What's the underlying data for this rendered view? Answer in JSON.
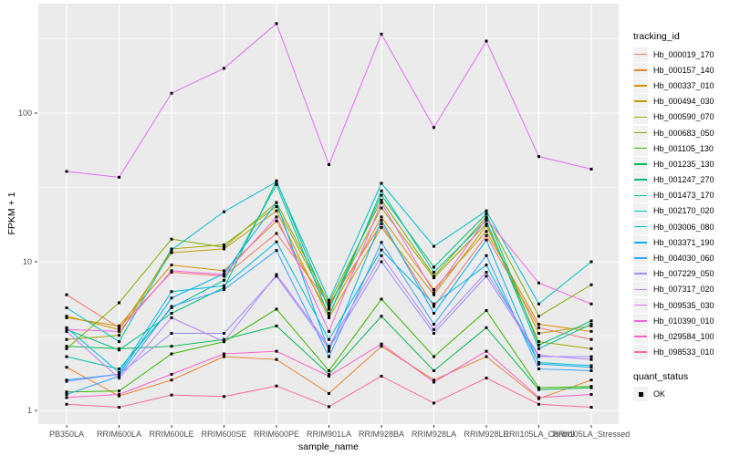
{
  "axes": {
    "x_title": "sample_name",
    "y_title": "FPKM + 1",
    "y_tick_labels": [
      "100",
      "10",
      "1"
    ]
  },
  "legend": {
    "tracking_title": "tracking_id",
    "quant_title": "quant_status",
    "quant_items": [
      "OK"
    ]
  },
  "chart_data": {
    "type": "line",
    "title": "",
    "xlabel": "sample_name",
    "ylabel": "FPKM + 1",
    "y_scale": "log10",
    "ylim": [
      0.81,
      545
    ],
    "y_ticks": [
      1,
      10,
      100
    ],
    "y_minor": [
      3.1623,
      31.623,
      316.23
    ],
    "grid": "on",
    "legend_position": "right",
    "point_marker": "black-square",
    "colors": {
      "panel_bg": "#EBEBEB",
      "grid": "#FFFFFF",
      "tick": "#333333",
      "tick_label": "#4D4D4D",
      "point": "#000000",
      "legend_key_bg": "#F2F2F2"
    },
    "categories": [
      "PB350LA",
      "RRIM600LA",
      "RRIM600LE",
      "RRIM600SE",
      "RRIM600PE",
      "RRIM901LA",
      "RRIM928BA",
      "RRIM928LA",
      "RRIM928LE",
      "RRII105LA_Control",
      "RRII105LA_Stressed"
    ],
    "series": [
      {
        "name": "Hb_000019_170",
        "color": "#F8766D",
        "values": [
          6.0,
          3.6,
          8.5,
          8.0,
          15.5,
          5.2,
          18,
          5.0,
          15,
          3.6,
          3.0
        ]
      },
      {
        "name": "Hb_000157_140",
        "color": "#EA8331",
        "values": [
          1.95,
          1.25,
          1.6,
          2.3,
          2.2,
          1.3,
          2.7,
          1.6,
          2.3,
          1.2,
          1.6
        ]
      },
      {
        "name": "Hb_000337_010",
        "color": "#D89000",
        "values": [
          4.2,
          3.7,
          9.5,
          8.7,
          18.8,
          4.5,
          20,
          6.5,
          16,
          3.8,
          3.4
        ]
      },
      {
        "name": "Hb_000494_030",
        "color": "#C09B00",
        "values": [
          4.3,
          3.5,
          11.5,
          12.2,
          22,
          4.2,
          17,
          6.0,
          17.5,
          3.3,
          3.7
        ]
      },
      {
        "name": "Hb_000590_070",
        "color": "#A3A500",
        "values": [
          3.0,
          3.2,
          12.2,
          13,
          23.5,
          5.0,
          23,
          7.8,
          18,
          2.9,
          2.6
        ]
      },
      {
        "name": "Hb_000683_050",
        "color": "#7CAE00",
        "values": [
          2.6,
          5.3,
          14.2,
          12.5,
          25,
          5.3,
          26,
          8.0,
          20,
          4.3,
          7.0
        ]
      },
      {
        "name": "Hb_001105_130",
        "color": "#39B600",
        "values": [
          1.33,
          1.35,
          2.4,
          2.9,
          4.8,
          1.85,
          5.6,
          2.3,
          4.7,
          1.42,
          1.45
        ]
      },
      {
        "name": "Hb_001235_130",
        "color": "#00BB4E",
        "values": [
          2.7,
          2.6,
          2.7,
          3.0,
          3.7,
          1.75,
          4.3,
          1.85,
          3.6,
          1.38,
          1.42
        ]
      },
      {
        "name": "Hb_001247_270",
        "color": "#00BF7D",
        "values": [
          3.5,
          2.55,
          4.5,
          6.7,
          35,
          4.8,
          28,
          9.2,
          21,
          2.75,
          4.0
        ]
      },
      {
        "name": "Hb_001473_170",
        "color": "#00C1A3",
        "values": [
          2.3,
          1.9,
          4.9,
          7.5,
          33,
          4.3,
          30,
          8.5,
          19,
          2.6,
          3.8
        ]
      },
      {
        "name": "Hb_002170_020",
        "color": "#00BFC4",
        "values": [
          4.9,
          2.9,
          12.0,
          21.7,
          34.5,
          5.5,
          33.7,
          12.7,
          22,
          5.2,
          10.0
        ]
      },
      {
        "name": "Hb_003006_080",
        "color": "#00BAE0",
        "values": [
          3.6,
          1.8,
          6.3,
          6.9,
          13.6,
          3.0,
          12,
          5.2,
          9.5,
          2.1,
          2.0
        ]
      },
      {
        "name": "Hb_003371_190",
        "color": "#00B0F6",
        "values": [
          1.6,
          1.75,
          5.7,
          8.3,
          25,
          2.5,
          19,
          4.5,
          14,
          2.05,
          1.95
        ]
      },
      {
        "name": "Hb_004030_060",
        "color": "#35A2FF",
        "values": [
          1.28,
          1.7,
          5.0,
          6.5,
          11.9,
          2.3,
          13.5,
          3.8,
          11,
          1.9,
          1.85
        ]
      },
      {
        "name": "Hb_007229_050",
        "color": "#9590FF",
        "values": [
          1.57,
          1.75,
          3.3,
          3.3,
          8.0,
          2.6,
          10,
          3.3,
          8.0,
          2.3,
          2.3
        ]
      },
      {
        "name": "Hb_007317_020",
        "color": "#BC81FF",
        "values": [
          3.4,
          1.65,
          4.2,
          2.9,
          8.2,
          2.7,
          11,
          3.5,
          8.5,
          2.35,
          2.2
        ]
      },
      {
        "name": "Hb_009535_030",
        "color": "#E36EF6",
        "values": [
          40.5,
          37,
          136,
          200,
          400,
          45,
          340,
          80,
          305,
          51,
          42
        ]
      },
      {
        "name": "Hb_010390_010",
        "color": "#F763E0",
        "values": [
          3.5,
          3.4,
          8.7,
          8.2,
          20,
          3.4,
          25,
          6.2,
          19.5,
          7.2,
          5.2
        ]
      },
      {
        "name": "Hb_029584_100",
        "color": "#FF61C9",
        "values": [
          1.22,
          1.28,
          1.75,
          2.4,
          2.5,
          1.7,
          2.8,
          1.55,
          2.5,
          1.22,
          1.28
        ]
      },
      {
        "name": "Hb_098533_010",
        "color": "#FF68A1",
        "values": [
          1.1,
          1.05,
          1.27,
          1.24,
          1.46,
          1.06,
          1.7,
          1.12,
          1.65,
          1.1,
          1.05
        ]
      }
    ]
  }
}
